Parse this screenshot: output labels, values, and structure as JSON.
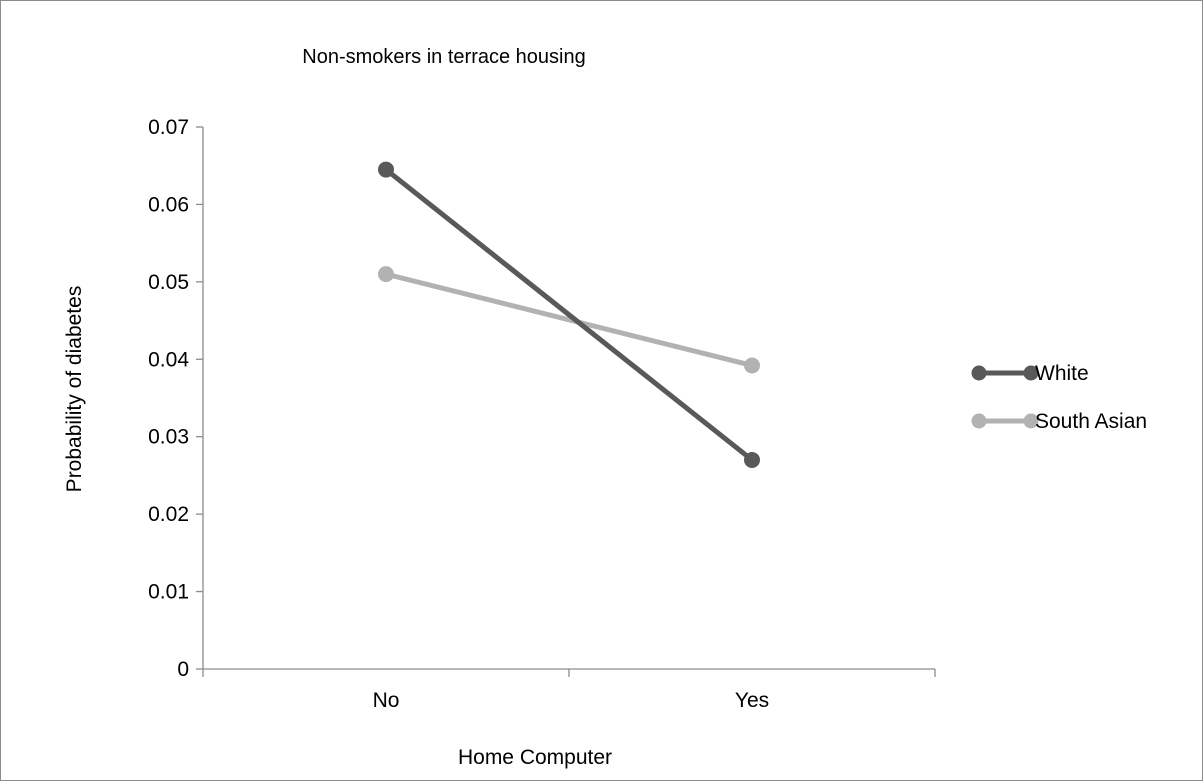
{
  "chart_data": {
    "type": "line",
    "title": "Non-smokers in terrace housing",
    "xlabel": "Home Computer",
    "ylabel": "Probability of diabetes",
    "categories": [
      "No",
      "Yes"
    ],
    "ylim": [
      0,
      0.07
    ],
    "yticks": [
      0,
      0.01,
      0.02,
      0.03,
      0.04,
      0.05,
      0.06,
      0.07
    ],
    "ytick_labels": [
      "0",
      "0.01",
      "0.02",
      "0.03",
      "0.04",
      "0.05",
      "0.06",
      "0.07"
    ],
    "grid": false,
    "legend_position": "right",
    "series": [
      {
        "name": "White",
        "values": [
          0.0645,
          0.027
        ],
        "color": "#595959"
      },
      {
        "name": "South Asian",
        "values": [
          0.051,
          0.0392
        ],
        "color": "#b2b2b2"
      }
    ]
  }
}
